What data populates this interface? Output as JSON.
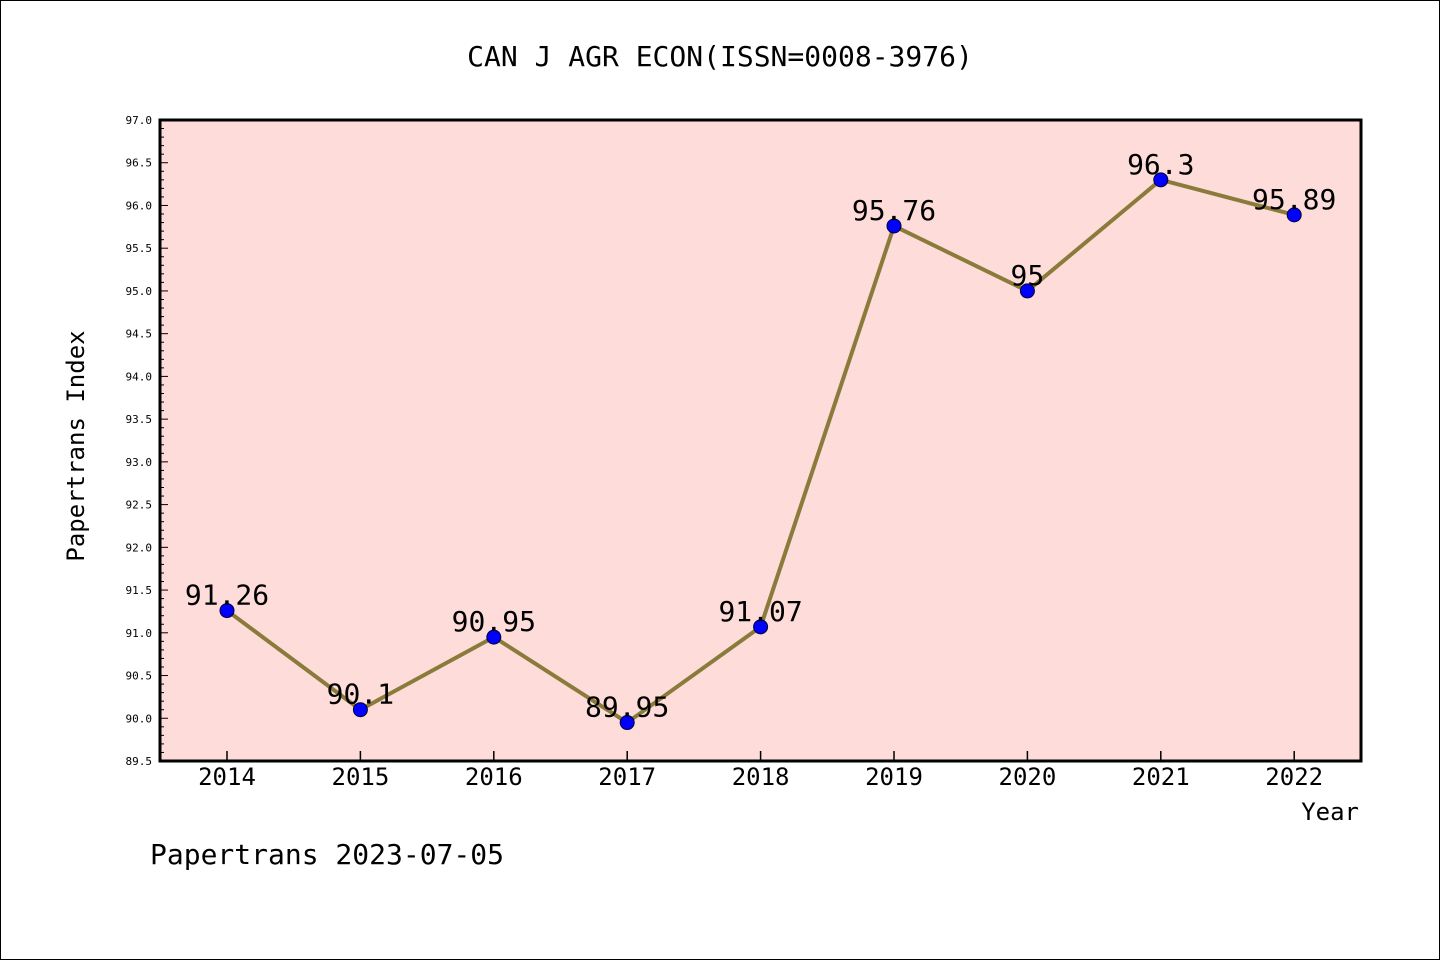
{
  "chart_data": {
    "type": "line",
    "title": "CAN J AGR ECON(ISSN=0008-3976)",
    "xlabel": "Year",
    "ylabel": "Papertrans Index",
    "footer": "Papertrans 2023-07-05",
    "categories": [
      "2014",
      "2015",
      "2016",
      "2017",
      "2018",
      "2019",
      "2020",
      "2021",
      "2022"
    ],
    "series": [
      {
        "values": [
          91.26,
          90.1,
          90.95,
          89.95,
          91.07,
          95.76,
          95,
          96.3,
          95.89
        ],
        "labels": [
          "91.26",
          "90.1",
          "90.95",
          "89.95",
          "91.07",
          "95.76",
          "95",
          "96.3",
          "95.89"
        ]
      }
    ],
    "ylim": [
      89.5,
      97.0
    ],
    "yticks": [
      "89.5",
      "90.0",
      "90.5",
      "91.0",
      "91.5",
      "92.0",
      "92.5",
      "93.0",
      "93.5",
      "94.0",
      "94.5",
      "95.0",
      "95.5",
      "96.0",
      "96.5",
      "97.0"
    ],
    "grid": false,
    "colors": {
      "plot_background": "#FDDCDA",
      "line": "#8B7B3B",
      "marker": "#0000FF"
    }
  }
}
